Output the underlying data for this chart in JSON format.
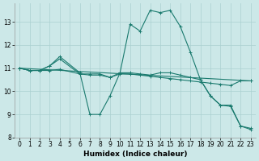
{
  "xlabel": "Humidex (Indice chaleur)",
  "bg_color": "#cce8e8",
  "line_color": "#1a7a6e",
  "grid_color": "#aad0d0",
  "xlim": [
    -0.5,
    23.5
  ],
  "ylim": [
    8,
    13.8
  ],
  "yticks": [
    8,
    9,
    10,
    11,
    12,
    13
  ],
  "xticks": [
    0,
    1,
    2,
    3,
    4,
    5,
    6,
    7,
    8,
    9,
    10,
    11,
    12,
    13,
    14,
    15,
    16,
    17,
    18,
    19,
    20,
    21,
    22,
    23
  ],
  "series": [
    {
      "x": [
        0,
        1,
        2,
        3,
        4,
        6,
        7,
        8,
        9,
        10,
        11,
        12,
        13,
        14,
        15,
        16,
        17,
        18,
        19,
        20,
        21,
        22,
        23
      ],
      "y": [
        11.0,
        10.9,
        10.9,
        11.1,
        11.5,
        10.8,
        9.0,
        9.0,
        9.8,
        10.8,
        12.9,
        12.6,
        13.5,
        13.4,
        13.5,
        12.8,
        11.7,
        10.5,
        9.8,
        9.4,
        9.4,
        8.5,
        8.4
      ]
    },
    {
      "x": [
        0,
        1,
        2,
        3,
        4,
        6,
        7,
        8,
        9,
        10,
        11,
        12,
        13,
        14,
        15,
        16,
        17,
        18,
        19,
        20,
        21,
        22,
        23
      ],
      "y": [
        11.0,
        10.9,
        10.9,
        11.1,
        11.4,
        10.75,
        10.75,
        10.75,
        10.6,
        10.8,
        10.8,
        10.75,
        10.7,
        10.8,
        10.8,
        10.7,
        10.6,
        10.5,
        9.8,
        9.4,
        9.35,
        8.5,
        8.35
      ]
    },
    {
      "x": [
        0,
        1,
        2,
        3,
        4,
        6,
        7,
        8,
        9,
        10,
        11,
        12,
        13,
        14,
        15,
        16,
        17,
        18,
        19,
        20,
        21,
        22,
        23
      ],
      "y": [
        11.0,
        10.9,
        10.9,
        10.9,
        10.95,
        10.75,
        10.7,
        10.7,
        10.6,
        10.75,
        10.75,
        10.7,
        10.65,
        10.6,
        10.55,
        10.5,
        10.45,
        10.4,
        10.35,
        10.3,
        10.25,
        10.45,
        10.45
      ]
    },
    {
      "x": [
        0,
        23
      ],
      "y": [
        11.0,
        10.45
      ]
    }
  ]
}
